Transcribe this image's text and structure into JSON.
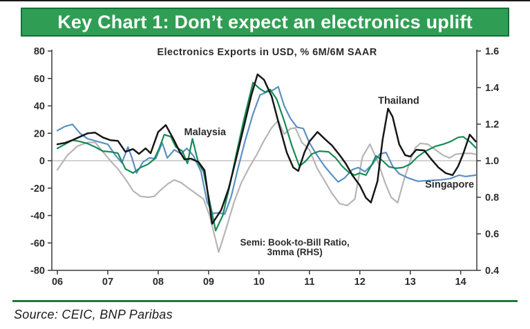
{
  "banner": {
    "title": "Key Chart 1: Don’t expect an electronics uplift",
    "bg_color": "#2f9e54",
    "border_color": "#13703a",
    "text_color": "#ffffff"
  },
  "source": {
    "text": "Source: CEIC, BNP Paribas",
    "rule_color": "#177a3c"
  },
  "chart_data": {
    "type": "line",
    "title": "Electronics Exports in USD, % 6M/6M SAAR",
    "axis_color": "#3a3a3a",
    "grid_color": "#a6a6a6",
    "text_color": "#2b2b2b",
    "grid": "zero-line-only",
    "legend_position": "inline-annotations",
    "x_axis": {
      "range": [
        2005.89,
        2014.32
      ],
      "tick_values": [
        2006,
        2007,
        2008,
        2009,
        2010,
        2011,
        2012,
        2013,
        2014
      ],
      "tick_labels": [
        "06",
        "07",
        "08",
        "09",
        "10",
        "11",
        "12",
        "13",
        "14"
      ]
    },
    "left_axis": {
      "range": [
        -80,
        80
      ],
      "tick_values": [
        80,
        60,
        40,
        20,
        0,
        -20,
        -40,
        -60,
        -80
      ],
      "tick_labels": [
        "80",
        "60",
        "40",
        "20",
        "0",
        "-20",
        "-40",
        "-60",
        "-80"
      ]
    },
    "right_axis": {
      "range": [
        0.4,
        1.6
      ],
      "tick_values": [
        1.6,
        1.4,
        1.2,
        1.0,
        0.8,
        0.6,
        0.4
      ],
      "tick_labels": [
        "1.6",
        "1.4",
        "1.2",
        "1.0",
        "0.8",
        "0.6",
        "0.4"
      ]
    },
    "series": [
      {
        "name": "Semi: Book-to-Bill Ratio, 3mma (RHS)",
        "axis": "right",
        "color": "#b5b5b5",
        "width": 2.2,
        "points": [
          [
            2006.0,
            0.95
          ],
          [
            2006.2,
            1.03
          ],
          [
            2006.4,
            1.08
          ],
          [
            2006.6,
            1.1
          ],
          [
            2006.75,
            1.1
          ],
          [
            2006.9,
            1.05
          ],
          [
            2007.05,
            1.0
          ],
          [
            2007.2,
            0.955
          ],
          [
            2007.35,
            0.9
          ],
          [
            2007.5,
            0.835
          ],
          [
            2007.65,
            0.805
          ],
          [
            2007.8,
            0.8
          ],
          [
            2007.92,
            0.805
          ],
          [
            2008.05,
            0.84
          ],
          [
            2008.2,
            0.875
          ],
          [
            2008.32,
            0.895
          ],
          [
            2008.45,
            0.88
          ],
          [
            2008.6,
            0.85
          ],
          [
            2008.75,
            0.82
          ],
          [
            2008.9,
            0.79
          ],
          [
            2009.02,
            0.7
          ],
          [
            2009.2,
            0.5
          ],
          [
            2009.35,
            0.63
          ],
          [
            2009.5,
            0.77
          ],
          [
            2009.65,
            0.88
          ],
          [
            2009.8,
            0.96
          ],
          [
            2009.95,
            1.03
          ],
          [
            2010.1,
            1.11
          ],
          [
            2010.25,
            1.18
          ],
          [
            2010.38,
            1.22
          ],
          [
            2010.5,
            1.145
          ],
          [
            2010.62,
            1.175
          ],
          [
            2010.72,
            1.18
          ],
          [
            2010.85,
            1.1
          ],
          [
            2011.0,
            1.06
          ],
          [
            2011.15,
            0.96
          ],
          [
            2011.3,
            0.89
          ],
          [
            2011.45,
            0.82
          ],
          [
            2011.6,
            0.765
          ],
          [
            2011.75,
            0.755
          ],
          [
            2011.9,
            0.79
          ],
          [
            2012.05,
            1.02
          ],
          [
            2012.2,
            1.09
          ],
          [
            2012.35,
            1.0
          ],
          [
            2012.5,
            0.88
          ],
          [
            2012.62,
            0.8
          ],
          [
            2012.75,
            0.77
          ],
          [
            2012.88,
            0.9
          ],
          [
            2013.0,
            1.0
          ],
          [
            2013.1,
            1.07
          ],
          [
            2013.2,
            1.095
          ],
          [
            2013.35,
            1.09
          ],
          [
            2013.5,
            1.06
          ],
          [
            2013.65,
            1.03
          ],
          [
            2013.78,
            1.015
          ],
          [
            2013.9,
            1.035
          ],
          [
            2014.05,
            1.04
          ],
          [
            2014.2,
            1.04
          ],
          [
            2014.3,
            1.035
          ]
        ]
      },
      {
        "name": "Singapore",
        "axis": "left",
        "color": "#5b8fc3",
        "width": 2.2,
        "points": [
          [
            2006.0,
            22
          ],
          [
            2006.15,
            25
          ],
          [
            2006.3,
            26.5
          ],
          [
            2006.45,
            20
          ],
          [
            2006.6,
            16
          ],
          [
            2006.8,
            14
          ],
          [
            2007.0,
            12
          ],
          [
            2007.15,
            4
          ],
          [
            2007.28,
            -1.5
          ],
          [
            2007.4,
            10
          ],
          [
            2007.48,
            2
          ],
          [
            2007.57,
            -9
          ],
          [
            2007.7,
            -1
          ],
          [
            2007.82,
            2
          ],
          [
            2007.95,
            1.5
          ],
          [
            2008.08,
            13
          ],
          [
            2008.18,
            2
          ],
          [
            2008.32,
            8
          ],
          [
            2008.45,
            5
          ],
          [
            2008.57,
            9
          ],
          [
            2008.7,
            3.5
          ],
          [
            2008.85,
            -8
          ],
          [
            2008.97,
            -30
          ],
          [
            2009.08,
            -38.5
          ],
          [
            2009.2,
            -38
          ],
          [
            2009.32,
            -39
          ],
          [
            2009.45,
            -26
          ],
          [
            2009.58,
            -6
          ],
          [
            2009.72,
            14
          ],
          [
            2009.88,
            34
          ],
          [
            2010.02,
            48
          ],
          [
            2010.15,
            50
          ],
          [
            2010.28,
            51.5
          ],
          [
            2010.38,
            54
          ],
          [
            2010.5,
            40
          ],
          [
            2010.62,
            31
          ],
          [
            2010.75,
            24.5
          ],
          [
            2010.88,
            23.5
          ],
          [
            2011.0,
            13
          ],
          [
            2011.15,
            4
          ],
          [
            2011.3,
            -4
          ],
          [
            2011.45,
            -10.5
          ],
          [
            2011.57,
            -15.5
          ],
          [
            2011.7,
            -12.5
          ],
          [
            2011.85,
            -6.5
          ],
          [
            2011.97,
            -5
          ],
          [
            2012.1,
            -8
          ],
          [
            2012.25,
            -2.5
          ],
          [
            2012.4,
            5
          ],
          [
            2012.52,
            6
          ],
          [
            2012.65,
            -4
          ],
          [
            2012.78,
            -9.5
          ],
          [
            2012.95,
            -12.5
          ],
          [
            2013.15,
            -15
          ],
          [
            2013.35,
            -14.5
          ],
          [
            2013.6,
            -14
          ],
          [
            2013.8,
            -13
          ],
          [
            2013.97,
            -10.5
          ],
          [
            2014.1,
            -11.5
          ],
          [
            2014.2,
            -11
          ],
          [
            2014.3,
            -10.5
          ]
        ]
      },
      {
        "name": "Malaysia",
        "axis": "left",
        "color": "#168a54",
        "width": 2.2,
        "points": [
          [
            2006.0,
            9
          ],
          [
            2006.15,
            12
          ],
          [
            2006.3,
            15
          ],
          [
            2006.45,
            14
          ],
          [
            2006.6,
            12.5
          ],
          [
            2006.75,
            10
          ],
          [
            2006.9,
            7
          ],
          [
            2007.05,
            6.5
          ],
          [
            2007.2,
            5.5
          ],
          [
            2007.35,
            -6
          ],
          [
            2007.5,
            -9
          ],
          [
            2007.65,
            -5
          ],
          [
            2007.8,
            -2.5
          ],
          [
            2007.92,
            1
          ],
          [
            2008.02,
            9
          ],
          [
            2008.12,
            19
          ],
          [
            2008.25,
            17.5
          ],
          [
            2008.35,
            10
          ],
          [
            2008.48,
            7
          ],
          [
            2008.58,
            -2
          ],
          [
            2008.68,
            16
          ],
          [
            2008.8,
            -2
          ],
          [
            2008.9,
            -8
          ],
          [
            2009.0,
            -26
          ],
          [
            2009.14,
            -51
          ],
          [
            2009.28,
            -40
          ],
          [
            2009.42,
            -18
          ],
          [
            2009.55,
            5
          ],
          [
            2009.7,
            30
          ],
          [
            2009.88,
            57
          ],
          [
            2010.0,
            53
          ],
          [
            2010.12,
            50
          ],
          [
            2010.22,
            52
          ],
          [
            2010.35,
            45
          ],
          [
            2010.5,
            29
          ],
          [
            2010.65,
            11
          ],
          [
            2010.8,
            -4
          ],
          [
            2010.92,
            -0.5
          ],
          [
            2011.05,
            5
          ],
          [
            2011.2,
            7
          ],
          [
            2011.38,
            6.5
          ],
          [
            2011.52,
            2
          ],
          [
            2011.65,
            -4
          ],
          [
            2011.78,
            -8.5
          ],
          [
            2011.9,
            -10.5
          ],
          [
            2012.0,
            -9
          ],
          [
            2012.12,
            -10.5
          ],
          [
            2012.25,
            -2
          ],
          [
            2012.32,
            3.5
          ],
          [
            2012.45,
            0
          ],
          [
            2012.58,
            -4.5
          ],
          [
            2012.72,
            -5.5
          ],
          [
            2012.85,
            -5
          ],
          [
            2013.0,
            -2.5
          ],
          [
            2013.15,
            3
          ],
          [
            2013.3,
            7
          ],
          [
            2013.5,
            10.5
          ],
          [
            2013.65,
            12
          ],
          [
            2013.8,
            14
          ],
          [
            2013.95,
            17
          ],
          [
            2014.05,
            17.5
          ],
          [
            2014.18,
            14
          ],
          [
            2014.3,
            9.5
          ]
        ]
      },
      {
        "name": "Thailand",
        "axis": "left",
        "color": "#161616",
        "width": 2.5,
        "points": [
          [
            2006.0,
            12
          ],
          [
            2006.15,
            13
          ],
          [
            2006.3,
            15
          ],
          [
            2006.45,
            17.5
          ],
          [
            2006.6,
            20
          ],
          [
            2006.75,
            20.5
          ],
          [
            2006.9,
            17
          ],
          [
            2007.05,
            15
          ],
          [
            2007.2,
            14.5
          ],
          [
            2007.35,
            6.5
          ],
          [
            2007.5,
            8.5
          ],
          [
            2007.62,
            5
          ],
          [
            2007.75,
            9
          ],
          [
            2007.85,
            5.5
          ],
          [
            2008.0,
            21
          ],
          [
            2008.15,
            26
          ],
          [
            2008.3,
            16
          ],
          [
            2008.42,
            7
          ],
          [
            2008.52,
            1
          ],
          [
            2008.65,
            1.5
          ],
          [
            2008.8,
            -1
          ],
          [
            2008.92,
            -7
          ],
          [
            2009.07,
            -46
          ],
          [
            2009.25,
            -36
          ],
          [
            2009.4,
            -20
          ],
          [
            2009.55,
            2
          ],
          [
            2009.7,
            25
          ],
          [
            2009.85,
            48
          ],
          [
            2009.97,
            63
          ],
          [
            2010.1,
            59
          ],
          [
            2010.25,
            47
          ],
          [
            2010.4,
            26
          ],
          [
            2010.55,
            6
          ],
          [
            2010.68,
            -5
          ],
          [
            2010.78,
            -7.5
          ],
          [
            2010.9,
            6
          ],
          [
            2011.0,
            14
          ],
          [
            2011.16,
            21
          ],
          [
            2011.3,
            16
          ],
          [
            2011.45,
            11
          ],
          [
            2011.6,
            4
          ],
          [
            2011.72,
            -2
          ],
          [
            2011.85,
            -10.5
          ],
          [
            2012.0,
            -18
          ],
          [
            2012.12,
            -27
          ],
          [
            2012.22,
            -30.5
          ],
          [
            2012.35,
            -15
          ],
          [
            2012.45,
            15
          ],
          [
            2012.56,
            38
          ],
          [
            2012.65,
            32
          ],
          [
            2012.78,
            12
          ],
          [
            2012.9,
            4
          ],
          [
            2013.0,
            3
          ],
          [
            2013.12,
            8
          ],
          [
            2013.28,
            7.5
          ],
          [
            2013.42,
            1
          ],
          [
            2013.56,
            -5
          ],
          [
            2013.7,
            -9
          ],
          [
            2013.84,
            -10.5
          ],
          [
            2013.95,
            -4
          ],
          [
            2014.05,
            5
          ],
          [
            2014.18,
            19
          ],
          [
            2014.3,
            14
          ]
        ]
      }
    ],
    "annotations": [
      {
        "text": "Malaysia",
        "x": 2008.93,
        "y": 18.5,
        "size": 14.5
      },
      {
        "text": "Thailand",
        "x": 2012.77,
        "y": 41.5,
        "size": 14.5
      },
      {
        "text": "Singapore",
        "x": 2013.78,
        "y": -19.5,
        "size": 14.5
      },
      {
        "text": "Semi: Book-to-Bill Ratio,",
        "x": 2010.71,
        "y": -62,
        "size": 13.5
      },
      {
        "text": "3mma (RHS)",
        "x": 2010.71,
        "y": -69,
        "size": 13.5
      }
    ]
  }
}
